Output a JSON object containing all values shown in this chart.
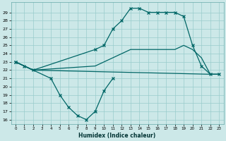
{
  "xlabel": "Humidex (Indice chaleur)",
  "bg_color": "#cce8e8",
  "grid_color": "#99cccc",
  "line_color": "#006666",
  "xlim": [
    -0.5,
    23.5
  ],
  "ylim": [
    15.5,
    30.2
  ],
  "xticks": [
    0,
    1,
    2,
    3,
    4,
    5,
    6,
    7,
    8,
    9,
    10,
    11,
    12,
    13,
    14,
    15,
    16,
    17,
    18,
    19,
    20,
    21,
    22,
    23
  ],
  "yticks": [
    16,
    17,
    18,
    19,
    20,
    21,
    22,
    23,
    24,
    25,
    26,
    27,
    28,
    29
  ],
  "line1_x": [
    0,
    1,
    2,
    9,
    10,
    11,
    12,
    13,
    14,
    15,
    16,
    17,
    18,
    19,
    20,
    21,
    22,
    23
  ],
  "line1_y": [
    23.0,
    22.5,
    22.0,
    24.5,
    25.0,
    27.0,
    28.0,
    29.5,
    29.5,
    29.0,
    29.0,
    29.0,
    29.0,
    28.5,
    25.0,
    22.5,
    21.5,
    21.5
  ],
  "line2_x": [
    0,
    2,
    9,
    10,
    11,
    12,
    13,
    14,
    15,
    16,
    17,
    18,
    19,
    20,
    21,
    22,
    23
  ],
  "line2_y": [
    23.0,
    22.0,
    22.5,
    23.0,
    23.5,
    24.0,
    24.5,
    24.5,
    24.5,
    24.5,
    24.5,
    24.5,
    25.0,
    24.5,
    23.5,
    21.5,
    21.5
  ],
  "line3_x": [
    0,
    4,
    5,
    6,
    7,
    8,
    9,
    10,
    11
  ],
  "line3_y": [
    23.0,
    21.0,
    19.0,
    17.5,
    16.5,
    16.0,
    17.0,
    19.5,
    21.0
  ],
  "line4_x": [
    0,
    2,
    22,
    23
  ],
  "line4_y": [
    23.0,
    22.0,
    21.5,
    21.5
  ]
}
